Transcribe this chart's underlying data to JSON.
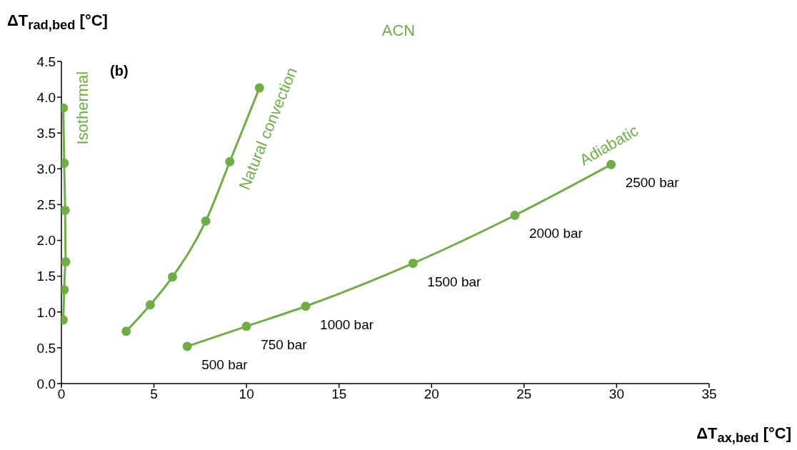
{
  "chart_data": {
    "type": "line",
    "title": "ACN",
    "xlabel": "ΔT$_{ax,bed}$ [°C]",
    "ylabel": "ΔT$_{rad,bed}$ [°C]",
    "xlim": [
      0,
      35
    ],
    "xticks": [
      0,
      5,
      10,
      15,
      20,
      25,
      30,
      35
    ],
    "ylim": [
      0,
      4.5
    ],
    "yticks": [
      {
        "value": 0,
        "label": "0.0"
      },
      0.5,
      {
        "value": 1,
        "label": "1.0"
      },
      1.5,
      {
        "value": 2,
        "label": "2.0"
      },
      2.5,
      {
        "value": 3,
        "label": "3.0"
      },
      3.5,
      {
        "value": 4,
        "label": "4.0"
      },
      4.5
    ],
    "grid": false,
    "marker": "circle",
    "line_style": "solid",
    "annotations": [
      "(b)",
      {
        "text": "500 bar",
        "x": 6.8,
        "y": 0.52
      },
      {
        "text": "750 bar",
        "x": 10.0,
        "y": 0.8
      },
      {
        "text": "1000 bar",
        "x": 13.2,
        "y": 1.08
      },
      {
        "text": "1500 bar",
        "x": 19.0,
        "y": 1.68
      },
      {
        "text": "2000 bar",
        "x": 24.5,
        "y": 2.35
      },
      {
        "text": "2500 bar",
        "x": 29.7,
        "y": 3.06
      }
    ],
    "series": [
      {
        "name": "Isothermal",
        "color": "#70ad47",
        "x": [
          0.1,
          0.15,
          0.2,
          0.23,
          0.15,
          0.1
        ],
        "values": [
          3.85,
          3.08,
          2.42,
          1.7,
          1.31,
          0.89
        ]
      },
      {
        "name": "Natural convection",
        "color": "#70ad47",
        "x": [
          3.5,
          4.8,
          6.0,
          7.8,
          9.1,
          10.7
        ],
        "values": [
          0.73,
          1.1,
          1.49,
          2.27,
          3.1,
          4.13
        ]
      },
      {
        "name": "Adiabatic",
        "color": "#70ad47",
        "x": [
          6.8,
          10.0,
          13.2,
          19.0,
          24.5,
          29.7
        ],
        "values": [
          0.52,
          0.8,
          1.08,
          1.68,
          2.35,
          3.06
        ]
      }
    ]
  }
}
